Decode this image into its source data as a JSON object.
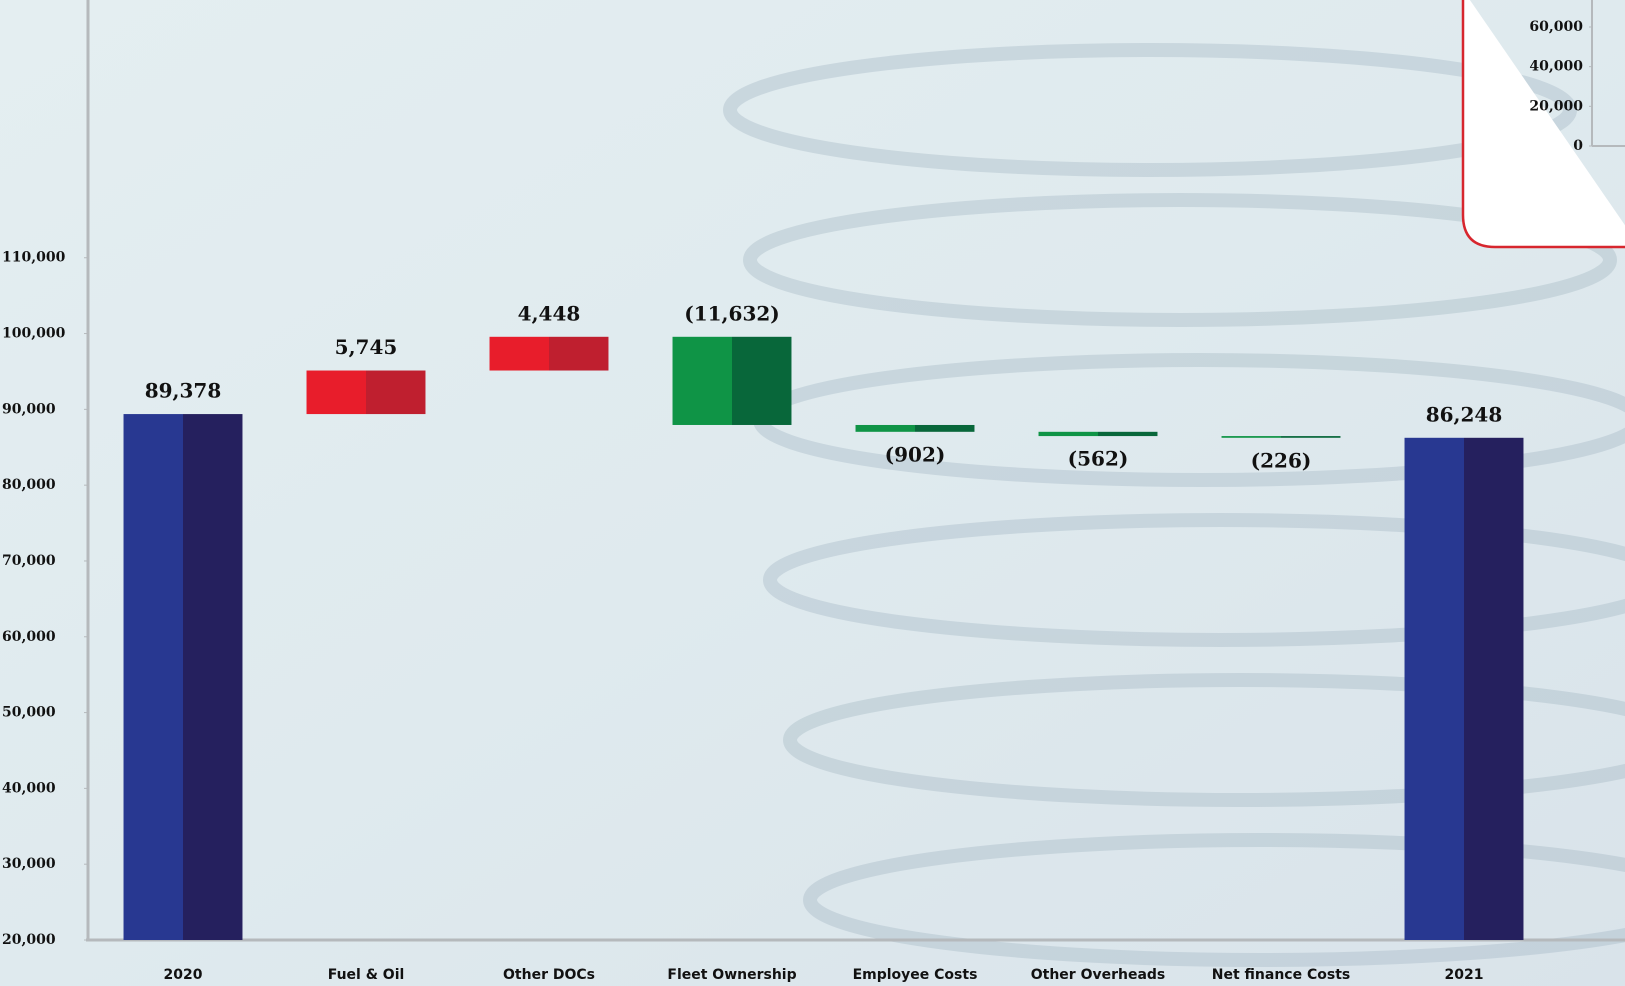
{
  "chart_data": [
    {
      "type": "waterfall",
      "categories": [
        "2020",
        "Fuel & Oil",
        "Other DOCs",
        "Fleet Ownership",
        "Employee Costs",
        "Other Overheads",
        "Net finance Costs",
        "2021"
      ],
      "values": [
        89378,
        5745,
        4448,
        -11632,
        -902,
        -562,
        -226,
        86248
      ],
      "value_labels": [
        "89,378",
        "5,745",
        "4,448",
        "(11,632)",
        "(902)",
        "(562)",
        "(226)",
        "86,248"
      ],
      "total_color": [
        "#283891",
        "#25205e"
      ],
      "increase_color": [
        "#e81d2b",
        "#bf1f2f"
      ],
      "decrease_color": [
        "#0f9446",
        "#08673a"
      ],
      "ylim": [
        20000,
        144000
      ],
      "yticks": [
        {
          "value": 20000,
          "label": "20,000"
        },
        {
          "value": 30000,
          "label": "30,000"
        },
        {
          "value": 40000,
          "label": "40,000"
        },
        {
          "value": 50000,
          "label": "50,000"
        },
        {
          "value": 60000,
          "label": "60,000"
        },
        {
          "value": 70000,
          "label": "70,000"
        },
        {
          "value": 80000,
          "label": "80,000"
        },
        {
          "value": 90000,
          "label": "90,000"
        },
        {
          "value": 100000,
          "label": "100,000"
        },
        {
          "value": 110000,
          "label": "110,000"
        }
      ]
    },
    {
      "type": "inset",
      "ylim": [
        0,
        60000
      ],
      "yticks": [
        0,
        {
          "value": 20000,
          "label": "20,000"
        },
        {
          "value": 40000,
          "label": "40,000"
        },
        {
          "value": 60000,
          "label": "60,000"
        }
      ]
    }
  ]
}
